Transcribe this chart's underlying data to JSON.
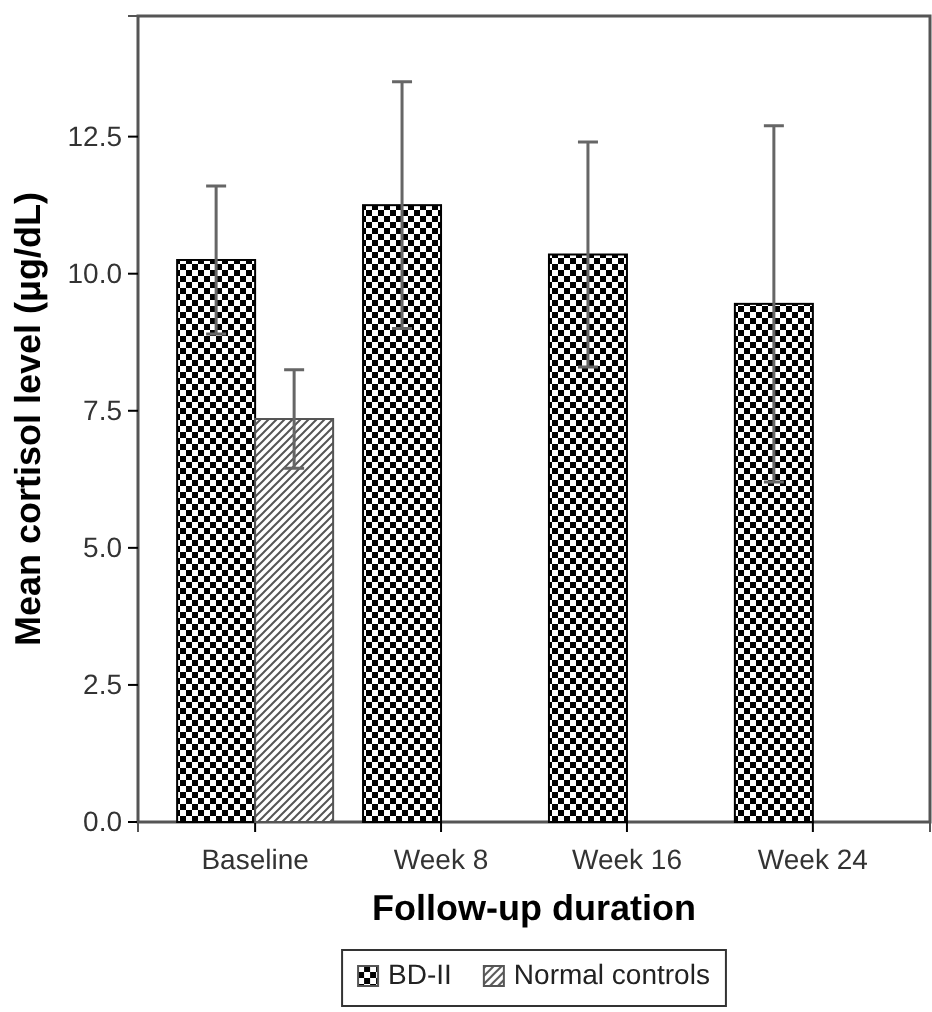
{
  "chart_data": {
    "type": "bar",
    "xlabel": "Follow-up duration",
    "ylabel": "Mean cortisol level (μg/dL)",
    "categories": [
      "Baseline",
      "Week 8",
      "Week 16",
      "Week 24"
    ],
    "series": [
      {
        "name": "BD-II",
        "color": "#000000",
        "values": [
          10.25,
          11.25,
          10.35,
          9.45
        ],
        "errors": [
          1.35,
          2.25,
          2.05,
          3.25
        ]
      },
      {
        "name": "Normal controls",
        "color": "#555555",
        "values": [
          7.35,
          null,
          null,
          null
        ],
        "errors": [
          0.9,
          null,
          null,
          null
        ]
      }
    ],
    "ylim": [
      0,
      14.7
    ],
    "yticks": [
      {
        "value": 0,
        "label": "0.0"
      },
      {
        "value": 2.5,
        "label": "2.5"
      },
      {
        "value": 5,
        "label": "5.0"
      },
      {
        "value": 7.5,
        "label": "7.5"
      },
      {
        "value": 10,
        "label": "10.0"
      },
      {
        "value": 12.5,
        "label": "12.5"
      }
    ],
    "grid": false,
    "legend": "bottom"
  }
}
